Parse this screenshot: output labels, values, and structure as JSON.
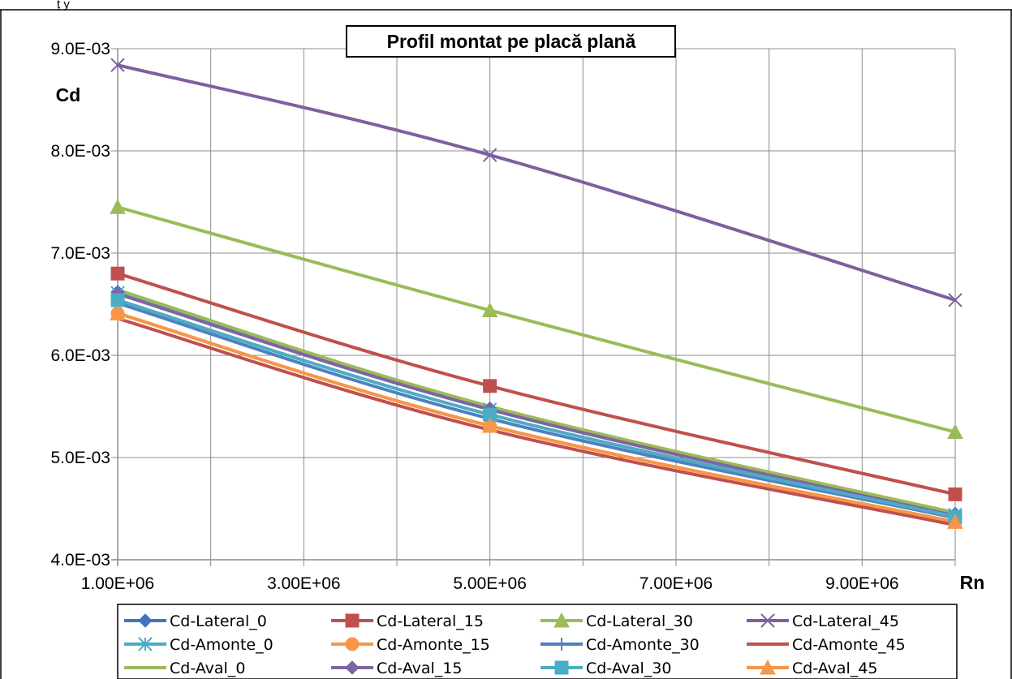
{
  "chart_data": {
    "type": "line",
    "title": "Profil montat pe placă plană",
    "xlabel": "Rn",
    "ylabel": "Cd",
    "xlim": [
      1000000,
      10000000
    ],
    "ylim": [
      0.004,
      0.009
    ],
    "x_ticks": [
      "1.00E+06",
      "3.00E+06",
      "5.00E+06",
      "7.00E+06",
      "9.00E+06"
    ],
    "y_ticks": [
      "4.0E-03",
      "5.0E-03",
      "6.0E-03",
      "7.0E-03",
      "8.0E-03",
      "9.0E-03"
    ],
    "grid": true,
    "legend_position": "bottom",
    "x": [
      1000000,
      5000000,
      10000000
    ],
    "series": [
      {
        "name": "Cd-Lateral_0",
        "color": "#4472C4",
        "marker": "diamond",
        "values": [
          0.00662,
          0.00548,
          0.00445
        ]
      },
      {
        "name": "Cd-Lateral_15",
        "color": "#C0504D",
        "marker": "square",
        "values": [
          0.0068,
          0.0057,
          0.00464
        ]
      },
      {
        "name": "Cd-Lateral_30",
        "color": "#9BBB59",
        "marker": "triangle",
        "values": [
          0.00745,
          0.00644,
          0.00525
        ]
      },
      {
        "name": "Cd-Lateral_45",
        "color": "#7F5F9F",
        "marker": "x",
        "values": [
          0.00884,
          0.00796,
          0.00654
        ]
      },
      {
        "name": "Cd-Amonte_0",
        "color": "#4BACC6",
        "marker": "star",
        "values": [
          0.00661,
          0.00547,
          0.00444
        ]
      },
      {
        "name": "Cd-Amonte_15",
        "color": "#F79646",
        "marker": "circle",
        "values": [
          0.00641,
          0.00531,
          0.00437
        ]
      },
      {
        "name": "Cd-Amonte_30",
        "color": "#4F81BD",
        "marker": "plus",
        "values": [
          0.00651,
          0.00538,
          0.00441
        ]
      },
      {
        "name": "Cd-Amonte_45",
        "color": "#C0504D",
        "marker": "none",
        "values": [
          0.00636,
          0.00527,
          0.00434
        ]
      },
      {
        "name": "Cd-Aval_0",
        "color": "#9BBB59",
        "marker": "none",
        "values": [
          0.00664,
          0.0055,
          0.00446
        ]
      },
      {
        "name": "Cd-Aval_15",
        "color": "#8064A2",
        "marker": "diamond",
        "values": [
          0.0066,
          0.00547,
          0.00443
        ]
      },
      {
        "name": "Cd-Aval_30",
        "color": "#4BACC6",
        "marker": "square",
        "values": [
          0.00654,
          0.00542,
          0.00442
        ]
      },
      {
        "name": "Cd-Aval_45",
        "color": "#F79646",
        "marker": "triangle",
        "values": [
          0.00641,
          0.00531,
          0.00437
        ]
      }
    ]
  },
  "top_strip_text": "ț                                                                    y"
}
